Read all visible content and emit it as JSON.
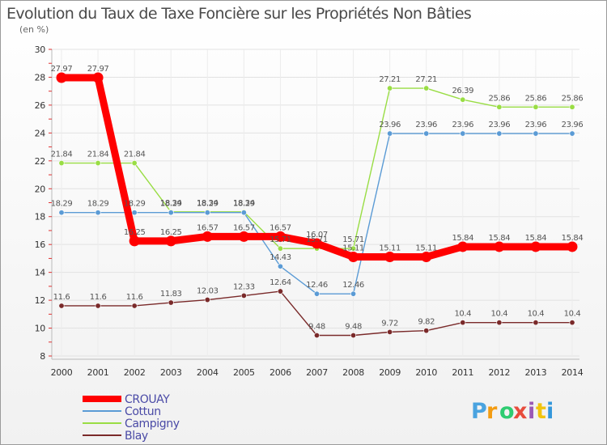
{
  "chart_data": {
    "type": "line",
    "title": "Evolution du Taux de Taxe Foncière sur les Propriétés Non Bâties",
    "subtitle": "(en %)",
    "x": [
      "2000",
      "2001",
      "2002",
      "2003",
      "2004",
      "2005",
      "2006",
      "2007",
      "2008",
      "2009",
      "2010",
      "2011",
      "2012",
      "2013",
      "2014"
    ],
    "ylim": [
      8,
      30
    ],
    "yticks": [
      "8",
      "10",
      "12",
      "14",
      "16",
      "18",
      "20",
      "22",
      "24",
      "26",
      "28",
      "30"
    ],
    "grid": true,
    "legend_position": "bottom-left",
    "series": [
      {
        "name": "CROUAY",
        "color": "#ff0000",
        "values": [
          27.97,
          27.97,
          16.25,
          16.25,
          16.57,
          16.57,
          16.57,
          16.07,
          15.11,
          15.11,
          15.11,
          15.84,
          15.84,
          15.84,
          15.84
        ],
        "labels": [
          "27.97",
          "27.97",
          "16.25",
          "16.25",
          "16.57",
          "16.57",
          "16.57",
          "16.07",
          "15.11",
          "15.11",
          "15.11",
          "15.84",
          "15.84",
          "15.84",
          "15.84"
        ]
      },
      {
        "name": "Cottun",
        "color": "#5b9bd5",
        "values": [
          18.29,
          18.29,
          18.29,
          18.29,
          18.29,
          18.29,
          14.43,
          12.46,
          12.46,
          23.96,
          23.96,
          23.96,
          23.96,
          23.96,
          23.96
        ],
        "labels": [
          "18.29",
          "18.29",
          "18.29",
          "18.29",
          "18.29",
          "18.29",
          "14.43",
          "12.46",
          "12.46",
          "23.96",
          "23.96",
          "23.96",
          "23.96",
          "23.96",
          "23.96"
        ]
      },
      {
        "name": "Campigny",
        "color": "#99dd44",
        "values": [
          21.84,
          21.84,
          21.84,
          18.34,
          18.34,
          18.34,
          15.71,
          15.71,
          15.71,
          27.21,
          27.21,
          26.39,
          25.86,
          25.86,
          25.86
        ],
        "labels": [
          "21.84",
          "21.84",
          "21.84",
          "18.34",
          "18.34",
          "18.34",
          "15.71",
          "15.71",
          "15.71",
          "27.21",
          "27.21",
          "26.39",
          "25.86",
          "25.86",
          "25.86"
        ]
      },
      {
        "name": "Blay",
        "color": "#7a2a2a",
        "values": [
          11.6,
          11.6,
          11.6,
          11.83,
          12.03,
          12.33,
          12.64,
          9.48,
          9.48,
          9.72,
          9.82,
          10.4,
          10.4,
          10.4,
          10.4
        ],
        "labels": [
          "11.6",
          "11.6",
          "11.6",
          "11.83",
          "12.03",
          "12.33",
          "12.64",
          "9.48",
          "9.48",
          "9.72",
          "9.82",
          "10.4",
          "10.4",
          "10.4",
          "10.4"
        ]
      }
    ]
  },
  "logo": {
    "letters": [
      "P",
      "r",
      "o",
      "x",
      "i",
      "t",
      "i"
    ],
    "colors": [
      "#4aa3df",
      "#f39c12",
      "#2ecc71",
      "#e74c3c",
      "#9b59b6",
      "#f1c40f",
      "#3498db"
    ]
  }
}
